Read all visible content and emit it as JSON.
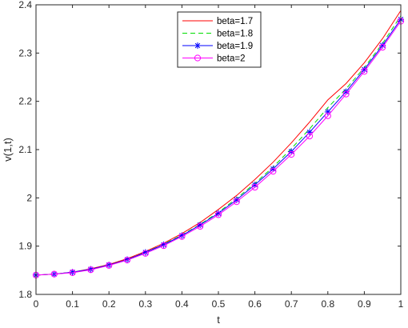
{
  "chart_data": {
    "type": "line",
    "title": "",
    "xlabel": "t",
    "ylabel": "v(1,t)",
    "xlim": [
      0,
      1
    ],
    "ylim": [
      1.8,
      2.4
    ],
    "xticks": [
      0,
      0.1,
      0.2,
      0.3,
      0.4,
      0.5,
      0.6,
      0.7,
      0.8,
      0.9,
      1
    ],
    "xtick_labels": [
      "0",
      "0.1",
      "0.2",
      "0.3",
      "0.4",
      "0.5",
      "0.6",
      "0.7",
      "0.8",
      "0.9",
      "1"
    ],
    "yticks": [
      1.8,
      1.9,
      2,
      2.1,
      2.2,
      2.3,
      2.4
    ],
    "ytick_labels": [
      "1.8",
      "1.9",
      "2",
      "2.1",
      "2.2",
      "2.3",
      "2.4"
    ],
    "grid": false,
    "legend_position": "top-center",
    "x": [
      0,
      0.05,
      0.1,
      0.15,
      0.2,
      0.25,
      0.3,
      0.35,
      0.4,
      0.45,
      0.5,
      0.55,
      0.6,
      0.65,
      0.7,
      0.75,
      0.8,
      0.85,
      0.9,
      0.95,
      1
    ],
    "series": [
      {
        "name": "beta=1.7",
        "color": "#ff0000",
        "line_style": "solid",
        "marker": "none",
        "values": [
          1.84,
          1.842,
          1.846,
          1.853,
          1.862,
          1.874,
          1.889,
          1.906,
          1.926,
          1.949,
          1.976,
          2.005,
          2.038,
          2.074,
          2.114,
          2.157,
          2.203,
          2.237,
          2.28,
          2.33,
          2.388
        ]
      },
      {
        "name": "beta=1.8",
        "color": "#00dd00",
        "line_style": "dashed",
        "marker": "none",
        "values": [
          1.84,
          1.842,
          1.846,
          1.852,
          1.861,
          1.872,
          1.887,
          1.904,
          1.923,
          1.945,
          1.97,
          1.999,
          2.03,
          2.064,
          2.102,
          2.143,
          2.187,
          2.226,
          2.27,
          2.32,
          2.377
        ]
      },
      {
        "name": "beta=1.9",
        "color": "#0000ff",
        "line_style": "solid",
        "marker": "star",
        "values": [
          1.84,
          1.842,
          1.846,
          1.852,
          1.861,
          1.872,
          1.887,
          1.903,
          1.922,
          1.944,
          1.968,
          1.996,
          2.027,
          2.06,
          2.096,
          2.136,
          2.178,
          2.22,
          2.266,
          2.316,
          2.37
        ]
      },
      {
        "name": "beta=2",
        "color": "#ff00ff",
        "line_style": "solid",
        "marker": "circle",
        "values": [
          1.84,
          1.842,
          1.845,
          1.851,
          1.86,
          1.871,
          1.885,
          1.901,
          1.92,
          1.941,
          1.965,
          1.992,
          2.022,
          2.055,
          2.09,
          2.128,
          2.17,
          2.215,
          2.262,
          2.312,
          2.366
        ]
      }
    ]
  }
}
